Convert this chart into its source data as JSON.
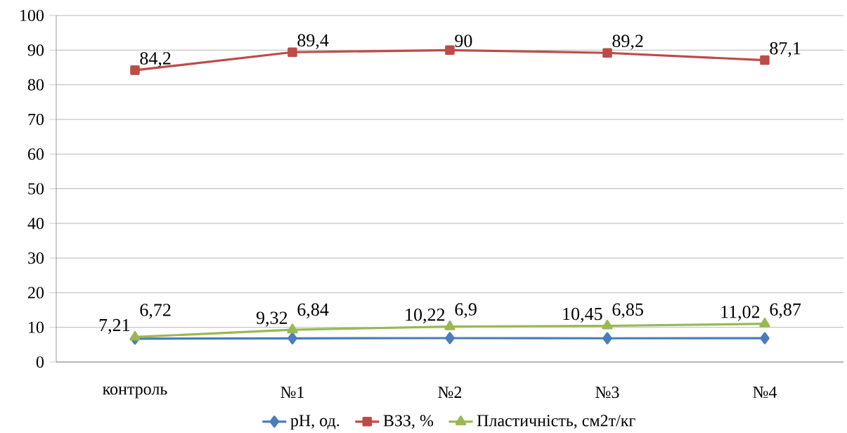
{
  "chart_data": {
    "type": "line",
    "categories": [
      "контроль",
      "№1",
      "№2",
      "№3",
      "№4"
    ],
    "series": [
      {
        "name": "pH, од.",
        "color": "#4a7ebb",
        "marker": "diamond",
        "values": [
          6.72,
          6.84,
          6.9,
          6.85,
          6.87
        ],
        "value_labels": [
          "6,72",
          "6,84",
          "6,9",
          "6,85",
          "6,87"
        ]
      },
      {
        "name": "ВЗЗ, %",
        "color": "#be4b48",
        "marker": "square",
        "values": [
          84.2,
          89.4,
          90,
          89.2,
          87.1
        ],
        "value_labels": [
          "84,2",
          "89,4",
          "90",
          "89,2",
          "87,1"
        ]
      },
      {
        "name": "Пластичність, см2т/кг",
        "color": "#98b954",
        "marker": "triangle",
        "values": [
          7.21,
          9.32,
          10.22,
          10.45,
          11.02
        ],
        "value_labels": [
          "7,21",
          "9,32",
          "10,22",
          "10,45",
          "11,02"
        ]
      }
    ],
    "ylim": [
      0,
      100
    ],
    "yticks": [
      0,
      10,
      20,
      30,
      40,
      50,
      60,
      70,
      80,
      90,
      100
    ],
    "grid": "y",
    "legend": "bottom"
  }
}
